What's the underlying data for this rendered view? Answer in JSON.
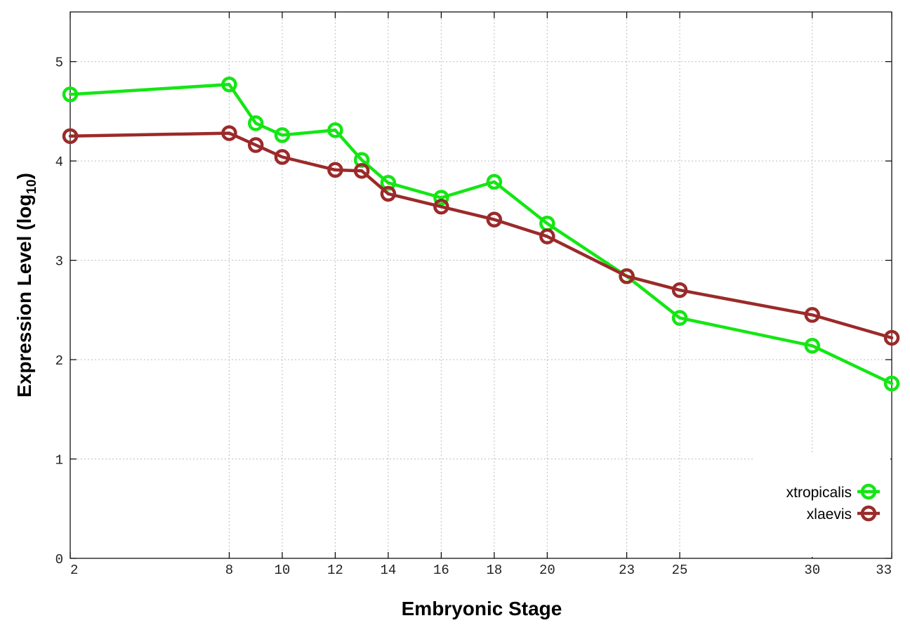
{
  "chart_data": {
    "type": "line",
    "xlabel": "Embryonic Stage",
    "ylabel_main": "Expression Level (log",
    "ylabel_sub": "10",
    "ylabel_end": ")",
    "x": [
      2,
      8,
      9,
      10,
      12,
      13,
      14,
      16,
      18,
      20,
      23,
      25,
      30,
      33
    ],
    "x_ticks": [
      2,
      8,
      10,
      12,
      14,
      16,
      18,
      20,
      23,
      25,
      30,
      33
    ],
    "y_ticks": [
      0,
      1,
      2,
      3,
      4,
      5
    ],
    "ylim": [
      0,
      5.5
    ],
    "grid": true,
    "legend_position": "bottom-right",
    "series": [
      {
        "name": "xtropicalis",
        "color": "#14e614",
        "values": [
          4.67,
          4.77,
          4.38,
          4.26,
          4.31,
          4.01,
          3.78,
          3.63,
          3.79,
          3.37,
          2.84,
          2.42,
          2.14,
          1.76
        ]
      },
      {
        "name": "xlaevis",
        "color": "#9b2a2a",
        "values": [
          4.25,
          4.28,
          4.16,
          4.04,
          3.91,
          3.9,
          3.67,
          3.54,
          3.41,
          3.24,
          2.84,
          2.7,
          2.45,
          2.22
        ]
      }
    ]
  }
}
